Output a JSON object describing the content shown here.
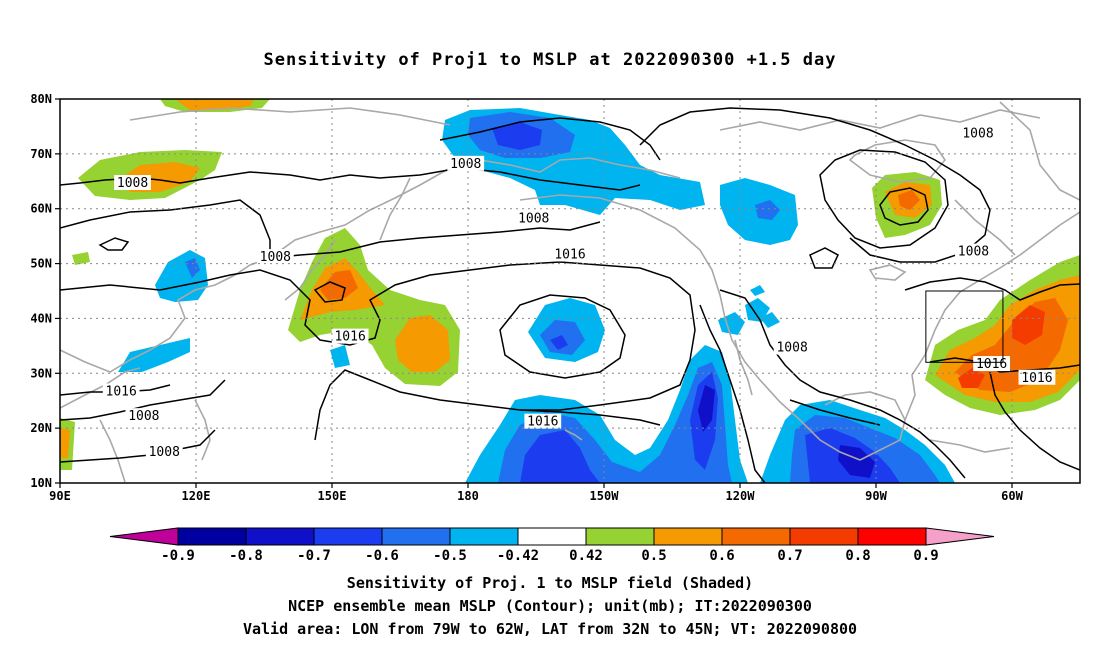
{
  "title": "Sensitivity of Proj1 to MSLP at 2022090300 +1.5 day",
  "lat_ticks": [
    {
      "lat": 80,
      "label": "80N"
    },
    {
      "lat": 70,
      "label": "70N"
    },
    {
      "lat": 60,
      "label": "60N"
    },
    {
      "lat": 50,
      "label": "50N"
    },
    {
      "lat": 40,
      "label": "40N"
    },
    {
      "lat": 30,
      "label": "30N"
    },
    {
      "lat": 20,
      "label": "20N"
    },
    {
      "lat": 10,
      "label": "10N"
    }
  ],
  "lon_ticks": [
    {
      "lon": 90,
      "label": "90E"
    },
    {
      "lon": 120,
      "label": "120E"
    },
    {
      "lon": 150,
      "label": "150E"
    },
    {
      "lon": 180,
      "label": "180"
    },
    {
      "lon": 210,
      "label": "150W"
    },
    {
      "lon": 240,
      "label": "120W"
    },
    {
      "lon": 270,
      "label": "90W"
    },
    {
      "lon": 300,
      "label": "60W"
    }
  ],
  "contour_labels": [
    {
      "text": "1008",
      "lon": 106,
      "lat": 64.5
    },
    {
      "text": "1008",
      "lon": 179.5,
      "lat": 68
    },
    {
      "text": "1008",
      "lon": 194.5,
      "lat": 58
    },
    {
      "text": "1008",
      "lon": 137.5,
      "lat": 51
    },
    {
      "text": "1016",
      "lon": 202.5,
      "lat": 51.5
    },
    {
      "text": "1008",
      "lon": 292.5,
      "lat": 73.5
    },
    {
      "text": "1008",
      "lon": 291.5,
      "lat": 52
    },
    {
      "text": "1016",
      "lon": 154,
      "lat": 36.5
    },
    {
      "text": "1008",
      "lon": 251.5,
      "lat": 34.5
    },
    {
      "text": "1016",
      "lon": 295.5,
      "lat": 31.5
    },
    {
      "text": "1016",
      "lon": 305.5,
      "lat": 29
    },
    {
      "text": "1016",
      "lon": 103.5,
      "lat": 26.5
    },
    {
      "text": "1008",
      "lon": 108.5,
      "lat": 22
    },
    {
      "text": "1016",
      "lon": 196.5,
      "lat": 21
    },
    {
      "text": "1008",
      "lon": 113,
      "lat": 15.5
    }
  ],
  "valid_area": {
    "lon": [
      281,
      298
    ],
    "lat": [
      32,
      45
    ]
  },
  "colorbar": {
    "bins": [
      {
        "color": "#c0009a"
      },
      {
        "color": "#0000a0"
      },
      {
        "color": "#1010c8"
      },
      {
        "color": "#1c3cf0"
      },
      {
        "color": "#2070f0"
      },
      {
        "color": "#00b4f0"
      },
      {
        "color": "#ffffff"
      },
      {
        "color": "#96d232"
      },
      {
        "color": "#f59a00"
      },
      {
        "color": "#f56a00"
      },
      {
        "color": "#f53c00"
      },
      {
        "color": "#ff0000"
      },
      {
        "color": "#f5a0c8"
      }
    ],
    "labels": [
      "-0.9",
      "-0.8",
      "-0.7",
      "-0.6",
      "-0.5",
      "-0.42",
      "0.42",
      "0.5",
      "0.6",
      "0.7",
      "0.8",
      "0.9"
    ]
  },
  "captions": {
    "line1": "Sensitivity of Proj. 1 to MSLP field (Shaded)",
    "line2": "NCEP ensemble mean MSLP (Contour); unit(mb); IT:2022090300",
    "line3": "Valid area: LON from 79W to 62W, LAT from 32N to 45N; VT: 2022090800"
  },
  "colors": {
    "negative_light": "#00b4f0",
    "negative_mid": "#2070f0",
    "negative_strong": "#1c3cf0",
    "negative_deep": "#1010c8",
    "positive_light": "#96d232",
    "positive_mid": "#f59a00",
    "positive_strong": "#f56a00",
    "positive_deep": "#f53c00",
    "coast": "#a8a8a8",
    "contour": "#000000"
  }
}
